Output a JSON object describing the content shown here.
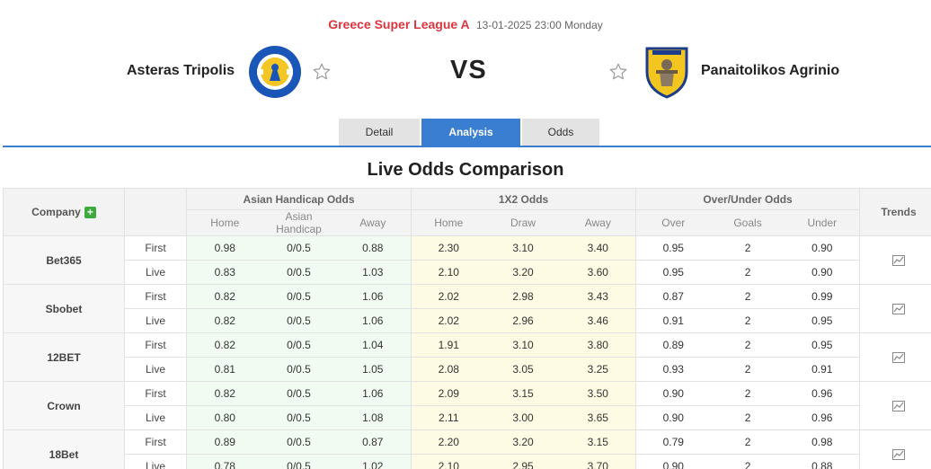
{
  "match": {
    "league": "Greece Super League A",
    "datetime": "13-01-2025 23:00 Monday",
    "home_team": "Asteras Tripolis",
    "away_team": "Panaitolikos Agrinio",
    "vs": "VS",
    "icons": {
      "home_logo": "asteras-tripolis-crest-icon",
      "away_logo": "panaitolikos-crest-icon",
      "favorite": "star-outline-icon"
    }
  },
  "tabs": [
    {
      "label": "Detail",
      "active": false
    },
    {
      "label": "Analysis",
      "active": true
    },
    {
      "label": "Odds",
      "active": false
    }
  ],
  "section_title": "Live Odds Comparison",
  "table": {
    "headers": {
      "company": "Company",
      "asian": "Asian Handicap Odds",
      "x12": "1X2 Odds",
      "ou": "Over/Under Odds",
      "trends": "Trends"
    },
    "subheaders": {
      "asian": [
        "Home",
        "Asian Handicap",
        "Away"
      ],
      "x12": [
        "Home",
        "Draw",
        "Away"
      ],
      "ou": [
        "Over",
        "Goals",
        "Under"
      ]
    },
    "companies": [
      {
        "name": "Bet365",
        "rows": [
          {
            "type": "First",
            "ah": [
              "0.98",
              "0/0.5",
              "0.88"
            ],
            "x12": [
              "2.30",
              "3.10",
              "3.40"
            ],
            "ou": [
              "0.95",
              "2",
              "0.90"
            ]
          },
          {
            "type": "Live",
            "ah": [
              "0.83",
              "0/0.5",
              "1.03"
            ],
            "x12": [
              "2.10",
              "3.20",
              "3.60"
            ],
            "ou": [
              "0.95",
              "2",
              "0.90"
            ]
          }
        ]
      },
      {
        "name": "Sbobet",
        "rows": [
          {
            "type": "First",
            "ah": [
              "0.82",
              "0/0.5",
              "1.06"
            ],
            "x12": [
              "2.02",
              "2.98",
              "3.43"
            ],
            "ou": [
              "0.87",
              "2",
              "0.99"
            ]
          },
          {
            "type": "Live",
            "ah": [
              "0.82",
              "0/0.5",
              "1.06"
            ],
            "x12": [
              "2.02",
              "2.96",
              "3.46"
            ],
            "ou": [
              "0.91",
              "2",
              "0.95"
            ]
          }
        ]
      },
      {
        "name": "12BET",
        "rows": [
          {
            "type": "First",
            "ah": [
              "0.82",
              "0/0.5",
              "1.04"
            ],
            "x12": [
              "1.91",
              "3.10",
              "3.80"
            ],
            "ou": [
              "0.89",
              "2",
              "0.95"
            ]
          },
          {
            "type": "Live",
            "ah": [
              "0.81",
              "0/0.5",
              "1.05"
            ],
            "x12": [
              "2.08",
              "3.05",
              "3.25"
            ],
            "ou": [
              "0.93",
              "2",
              "0.91"
            ]
          }
        ]
      },
      {
        "name": "Crown",
        "rows": [
          {
            "type": "First",
            "ah": [
              "0.82",
              "0/0.5",
              "1.06"
            ],
            "x12": [
              "2.09",
              "3.15",
              "3.50"
            ],
            "ou": [
              "0.90",
              "2",
              "0.96"
            ]
          },
          {
            "type": "Live",
            "ah": [
              "0.80",
              "0/0.5",
              "1.08"
            ],
            "x12": [
              "2.11",
              "3.00",
              "3.65"
            ],
            "ou": [
              "0.90",
              "2",
              "0.96"
            ]
          }
        ]
      },
      {
        "name": "18Bet",
        "rows": [
          {
            "type": "First",
            "ah": [
              "0.89",
              "0/0.5",
              "0.87"
            ],
            "x12": [
              "2.20",
              "3.20",
              "3.15"
            ],
            "ou": [
              "0.79",
              "2",
              "0.98"
            ]
          },
          {
            "type": "Live",
            "ah": [
              "0.78",
              "0/0.5",
              "1.02"
            ],
            "x12": [
              "2.10",
              "2.95",
              "3.70"
            ],
            "ou": [
              "0.90",
              "2",
              "0.88"
            ]
          }
        ]
      }
    ]
  },
  "colors": {
    "league": "#d9363e",
    "active_tab": "#3a7ed1",
    "plus_button": "#3cab3c",
    "asian_bg": "#f2fbf2",
    "x12_bg": "#fdfbe3"
  }
}
